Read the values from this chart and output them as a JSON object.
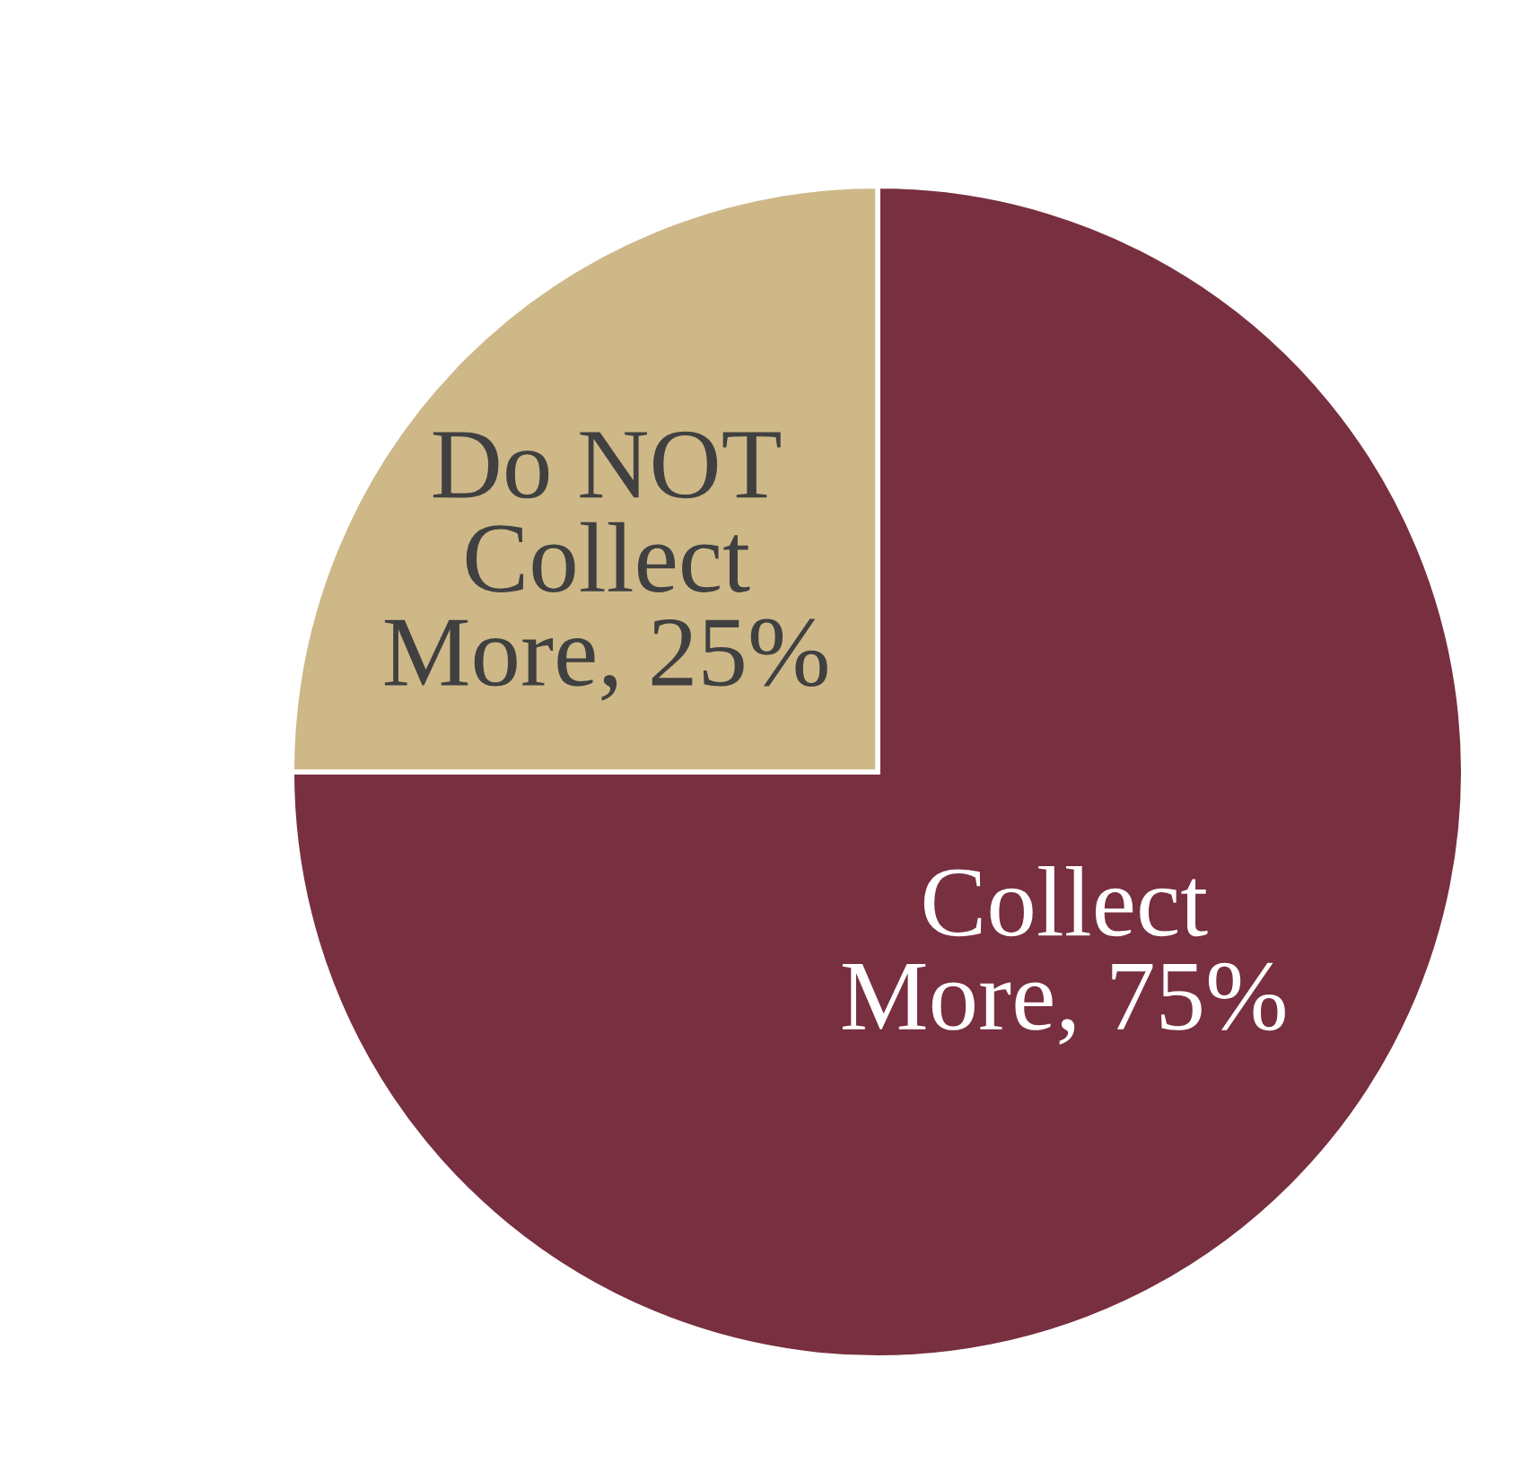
{
  "chart_data": {
    "type": "pie",
    "categories": [
      "Collect More",
      "Do NOT Collect More"
    ],
    "values": [
      75,
      25
    ],
    "colors": [
      "#782f40",
      "#ceb888"
    ],
    "value_labels": [
      "75%",
      "25%"
    ],
    "legend": false
  }
}
